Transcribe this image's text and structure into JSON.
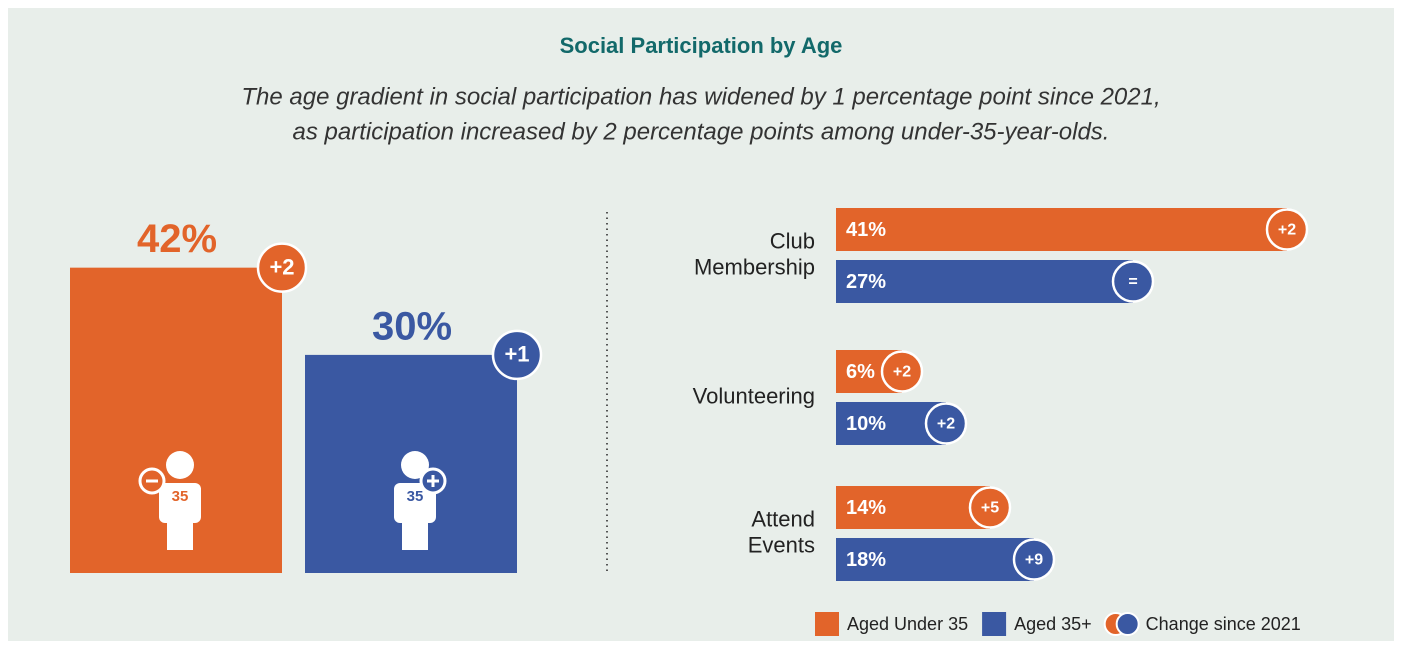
{
  "title": "Social Participation by Age",
  "subtitle": [
    "The age gradient in social participation has widened by 1 percentage point since 2021,",
    "as participation increased by 2 percentage points among under-35-year-olds."
  ],
  "chart_data": [
    {
      "type": "column-badges",
      "values": [
        42,
        30
      ],
      "value_labels": [
        "42%",
        "30%"
      ],
      "changes": [
        "+2",
        "+1"
      ],
      "icon_labels": [
        "35",
        "35"
      ],
      "colors": [
        "#e2642a",
        "#3a58a2"
      ]
    },
    {
      "type": "hbar-badges",
      "categories": [
        [
          "Club",
          "Membership"
        ],
        [
          "Volunteering"
        ],
        [
          "Attend",
          "Events"
        ]
      ],
      "series": [
        {
          "name": "Aged Under 35",
          "color": "#e2642a",
          "values": [
            41,
            6,
            14
          ],
          "value_labels": [
            "41%",
            "6%",
            "14%"
          ],
          "changes": [
            "+2",
            "+2",
            "+5"
          ]
        },
        {
          "name": "Aged 35+",
          "color": "#3a58a2",
          "values": [
            27,
            10,
            18
          ],
          "value_labels": [
            "27%",
            "10%",
            "18%"
          ],
          "changes": [
            "=",
            "+2",
            "+9"
          ]
        }
      ],
      "change_legend": "Change since 2021"
    }
  ]
}
